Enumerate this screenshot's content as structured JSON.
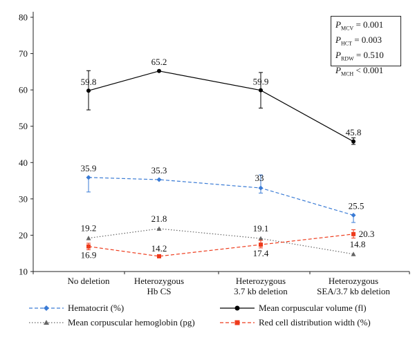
{
  "chart_data": {
    "type": "line",
    "categories": [
      [
        "No deletion"
      ],
      [
        "Heterozygous",
        "Hb CS"
      ],
      [
        "Heterozygous",
        "3.7 kb deletion"
      ],
      [
        "Heterozygous",
        "SEA/3.7 kb deletion"
      ]
    ],
    "ylim": [
      10,
      80
    ],
    "yticks": [
      10,
      20,
      30,
      40,
      50,
      60,
      70,
      80
    ],
    "series": [
      {
        "name": "Mean corpuscular volume (fl)",
        "values": [
          59.8,
          65.2,
          59.9,
          45.8
        ],
        "labels": [
          "59.8",
          "65.2",
          "59.9",
          "45.8"
        ],
        "error": [
          [
            54.5,
            65.3
          ],
          null,
          [
            55.0,
            64.8
          ],
          [
            45.0,
            46.8
          ]
        ],
        "color": "#000000",
        "marker": "circle",
        "dash": "solid"
      },
      {
        "name": "Hematocrit (%)",
        "values": [
          35.9,
          35.3,
          33.0,
          25.5
        ],
        "labels": [
          "35.9",
          "35.3",
          "33",
          "25.5"
        ],
        "error": [
          [
            31.9,
            35.9
          ],
          null,
          [
            31.6,
            36.6
          ],
          [
            23.5,
            25.5
          ]
        ],
        "color": "#3a7bd5",
        "marker": "diamond",
        "dash": "dashed"
      },
      {
        "name": "Mean corpuscular hemoglobin (pg)",
        "values": [
          19.2,
          21.8,
          19.1,
          14.8
        ],
        "labels": [
          "19.2",
          "21.8",
          "19.1",
          "14.8"
        ],
        "error": [
          null,
          null,
          null,
          null
        ],
        "color": "#666666",
        "marker": "triangle",
        "dash": "dotted"
      },
      {
        "name": "Red cell distribution width (%)",
        "values": [
          16.9,
          14.2,
          17.4,
          20.3
        ],
        "labels": [
          "16.9",
          "14.2",
          "17.4",
          "20.3"
        ],
        "error": [
          [
            16.0,
            17.8
          ],
          null,
          [
            16.5,
            18.6
          ],
          [
            19.2,
            21.5
          ]
        ],
        "color": "#ee3b1c",
        "marker": "square",
        "dash": "dashed"
      }
    ],
    "annotations": [
      {
        "sub": "MCV",
        "text": " = 0.001"
      },
      {
        "sub": "HCT",
        "text": " = 0.003"
      },
      {
        "sub": "RDW",
        "text": " = 0.510"
      },
      {
        "sub": "MCH",
        "text": " < 0.001"
      }
    ],
    "grid": false,
    "legend": "bottom"
  }
}
